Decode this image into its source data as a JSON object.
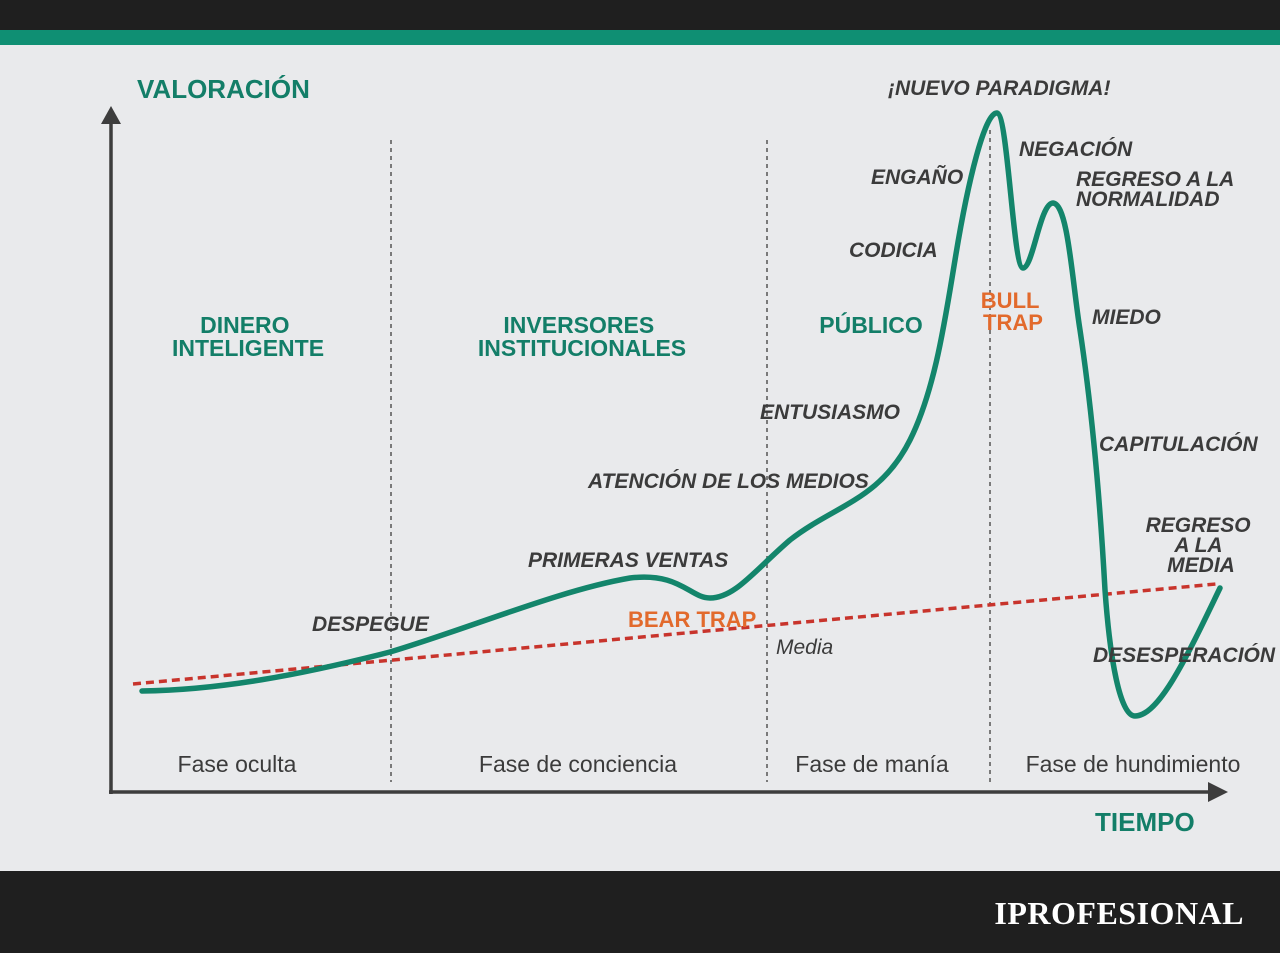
{
  "axes": {
    "y_label": "VALORACIÓN",
    "x_label": "TIEMPO"
  },
  "groups": [
    {
      "id": "dinero",
      "lines": [
        "DINERO",
        "INTELIGENTE"
      ]
    },
    {
      "id": "inversores",
      "lines": [
        "INVERSORES",
        "INSTITUCIONALES"
      ]
    },
    {
      "id": "publico",
      "lines": [
        "PÚBLICO"
      ]
    }
  ],
  "phases": [
    "Fase oculta",
    "Fase de conciencia",
    "Fase de manía",
    "Fase de hundimiento"
  ],
  "stages": {
    "despegue": "DESPEGUE",
    "primeras_ventas": "PRIMERAS VENTAS",
    "atencion_medios": "ATENCIÓN DE LOS MEDIOS",
    "entusiasmo": "ENTUSIASMO",
    "codicia": "CODICIA",
    "engano": "ENGAÑO",
    "nuevo_paradigma": "¡NUEVO PARADIGMA!",
    "negacion": "NEGACIÓN",
    "regreso_normalidad": [
      "REGRESO A LA",
      "NORMALIDAD"
    ],
    "miedo": "MIEDO",
    "capitulacion": "CAPITULACIÓN",
    "regreso_media": [
      "REGRESO",
      "A LA",
      "MEDIA"
    ],
    "desesperacion": "DESESPERACIÓN"
  },
  "traps": {
    "bear": "BEAR TRAP",
    "bull": [
      "BULL",
      "TRAP"
    ]
  },
  "mean_label": "Media",
  "brand": "IPROFESIONAL",
  "colors": {
    "curve": "#13856b",
    "mean_line": "#c8342c",
    "trap": "#e26a2c",
    "group_text": "#137e68"
  }
}
